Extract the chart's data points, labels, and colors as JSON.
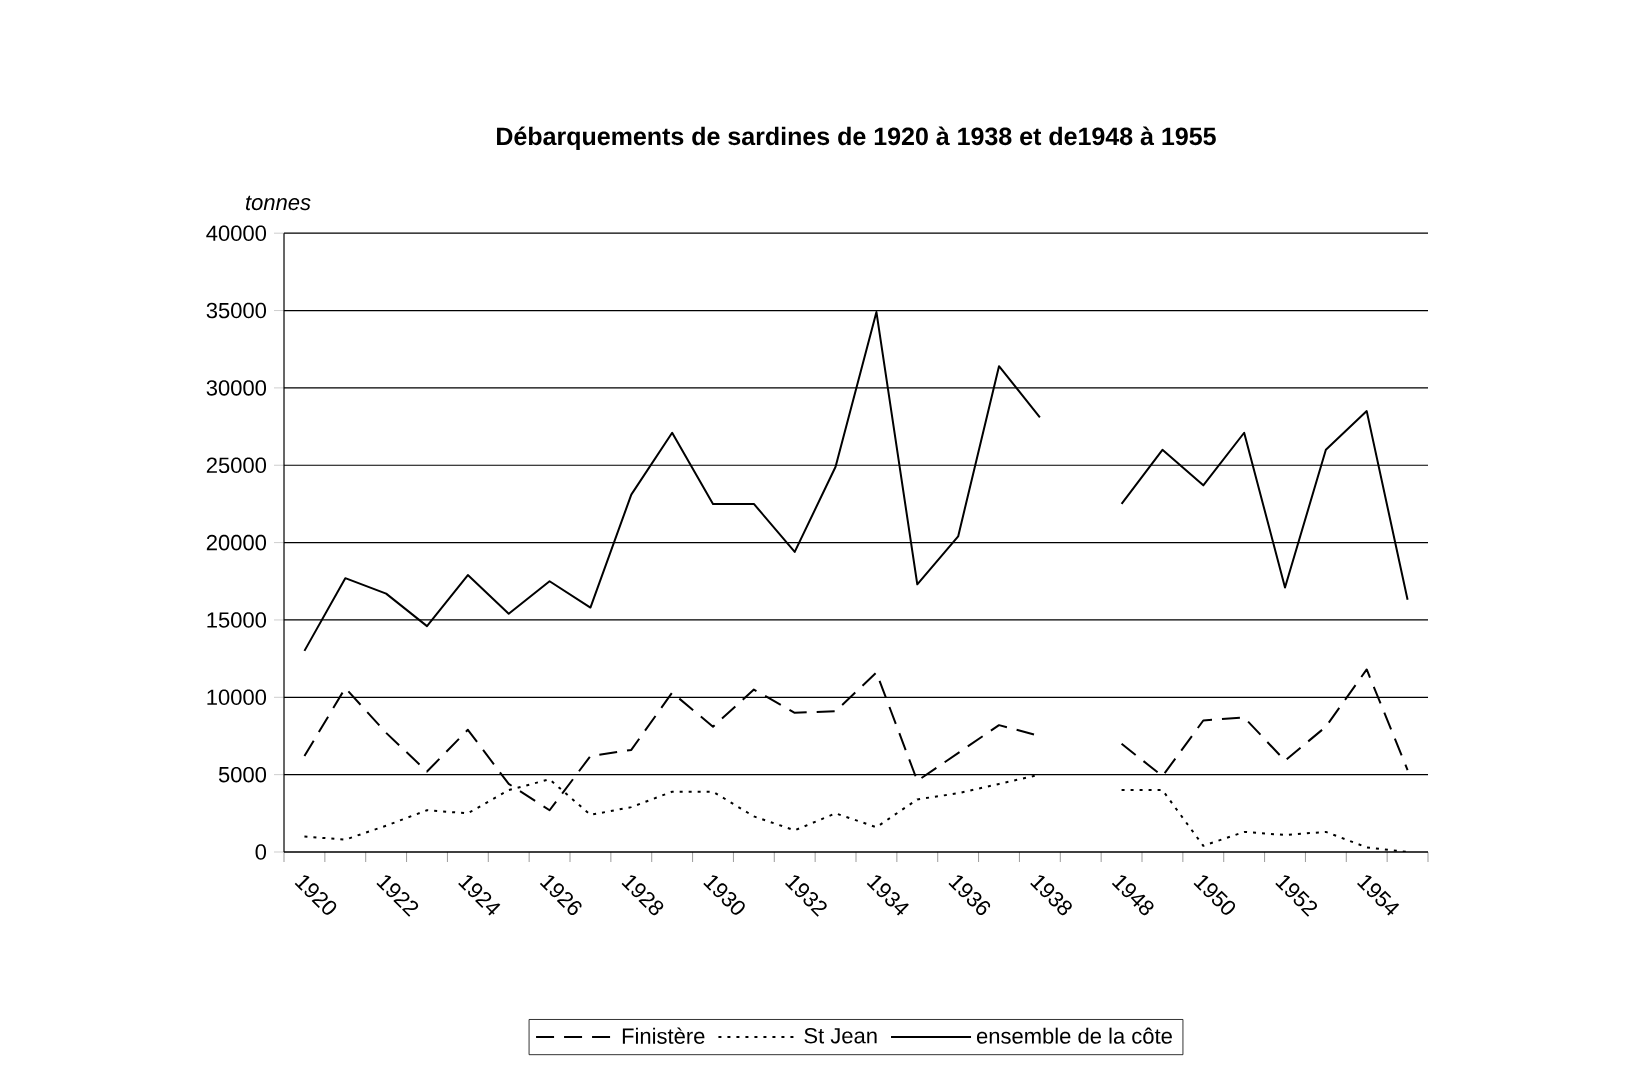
{
  "chart_data": {
    "type": "line",
    "title": "Débarquements de sardines de 1920 à 1938 et de1948 à 1955",
    "ylabel": "tonnes",
    "categories": [
      "1920",
      null,
      "1922",
      null,
      "1924",
      null,
      "1926",
      null,
      "1928",
      null,
      "1930",
      null,
      "1932",
      null,
      "1934",
      null,
      "1936",
      null,
      "1938",
      null,
      "1948",
      null,
      "1950",
      null,
      "1952",
      null,
      "1954",
      null
    ],
    "series": [
      {
        "name": "Finistère",
        "color": "#000000",
        "line_style": "dashed",
        "values": [
          6200,
          10600,
          7700,
          5200,
          7900,
          4400,
          2700,
          6200,
          6600,
          10300,
          8100,
          10500,
          9000,
          9100,
          11600,
          4600,
          6400,
          8200,
          7500,
          null,
          7000,
          4900,
          8500,
          8700,
          5900,
          8100,
          11800,
          5300
        ]
      },
      {
        "name": "St Jean",
        "color": "#000000",
        "line_style": "dotted",
        "values": [
          1000,
          800,
          1700,
          2700,
          2500,
          4000,
          4700,
          2400,
          2900,
          3900,
          3900,
          2300,
          1400,
          2500,
          1600,
          3400,
          3800,
          4400,
          5000,
          null,
          4000,
          4000,
          400,
          1300,
          1100,
          1300,
          300,
          0
        ]
      },
      {
        "name": "ensemble de la côte",
        "color": "#000000",
        "line_style": "solid",
        "values": [
          13000,
          17700,
          16700,
          14600,
          17900,
          15400,
          17500,
          15800,
          23100,
          27100,
          22500,
          22500,
          19400,
          24900,
          34900,
          17300,
          20400,
          31400,
          28100,
          null,
          22500,
          26000,
          23700,
          27100,
          17100,
          26000,
          28500,
          16300
        ]
      }
    ],
    "ylim": [
      0,
      40000
    ],
    "yticks": [
      0,
      5000,
      10000,
      15000,
      20000,
      25000,
      30000,
      35000,
      40000
    ],
    "grid": "y",
    "legend": "bottom",
    "marker": "none"
  }
}
